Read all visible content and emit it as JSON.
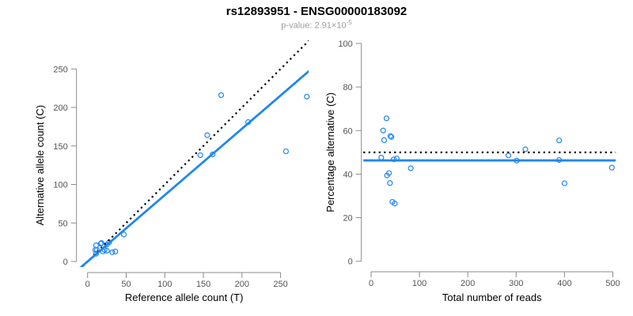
{
  "figure": {
    "title": "rs12893951 - ENSG00000183092",
    "subtitle": {
      "prefix": "p-value: 2.91×10",
      "exponent": "-5"
    }
  },
  "colors": {
    "points": "#1E87F0",
    "fit_line": "#1E87F0",
    "reference_line": "#000000",
    "axis": "#8B8B8B",
    "tick_labels": "#555555",
    "axis_titles": "#000000",
    "title": "#000000",
    "subtitle": "#9C9C9C",
    "background": "#FFFFFF"
  },
  "chart_data": [
    {
      "name": "allele-counts",
      "type": "scatter",
      "title": "",
      "xlabel": "Reference allele count (T)",
      "ylabel": "Alternative allele count (C)",
      "xticks": [
        0,
        50,
        100,
        150,
        200,
        250
      ],
      "yticks": [
        0,
        50,
        100,
        150,
        200,
        250
      ],
      "xlim": [
        -11,
        300
      ],
      "ylim": [
        -7,
        290
      ],
      "grid": false,
      "points": [
        [
          11,
          21
        ],
        [
          10,
          15
        ],
        [
          12,
          15
        ],
        [
          17,
          23
        ],
        [
          18,
          24
        ],
        [
          11,
          10
        ],
        [
          25,
          22
        ],
        [
          28,
          25
        ],
        [
          47,
          35
        ],
        [
          20,
          13
        ],
        [
          22,
          15
        ],
        [
          25,
          14
        ],
        [
          32,
          12
        ],
        [
          36,
          13
        ],
        [
          146,
          138
        ],
        [
          162,
          139
        ],
        [
          155,
          164
        ],
        [
          173,
          216
        ],
        [
          208,
          181
        ],
        [
          257,
          143
        ],
        [
          284,
          214
        ]
      ],
      "lines": [
        {
          "name": "expected-1-to-1",
          "slope": 1,
          "intercept": 0,
          "style": "dotted",
          "color": "#000000"
        },
        {
          "name": "observed-ratio-fit",
          "slope": 0.862,
          "intercept": 0,
          "style": "solid",
          "color": "#1E87F0"
        }
      ]
    },
    {
      "name": "percentage-alternative",
      "type": "scatter",
      "title": "",
      "xlabel": "Total number of reads",
      "ylabel": "Percentage alternative (C)",
      "xticks": [
        0,
        100,
        200,
        300,
        400,
        500
      ],
      "yticks": [
        0,
        20,
        40,
        60,
        80,
        100
      ],
      "xlim": [
        -16,
        506
      ],
      "ylim": [
        -3,
        103
      ],
      "grid": false,
      "points": [
        [
          32,
          65.6
        ],
        [
          25,
          60.0
        ],
        [
          27,
          55.6
        ],
        [
          40,
          57.5
        ],
        [
          42,
          57.1
        ],
        [
          21,
          47.6
        ],
        [
          47,
          46.8
        ],
        [
          53,
          47.2
        ],
        [
          82,
          42.7
        ],
        [
          33,
          39.4
        ],
        [
          37,
          40.5
        ],
        [
          39,
          35.9
        ],
        [
          44,
          27.3
        ],
        [
          49,
          26.5
        ],
        [
          284,
          48.6
        ],
        [
          301,
          46.2
        ],
        [
          319,
          51.4
        ],
        [
          389,
          55.5
        ],
        [
          389,
          46.5
        ],
        [
          400,
          35.8
        ],
        [
          498,
          43.0
        ]
      ],
      "lines": [
        {
          "name": "expected-50-percent",
          "slope": 0,
          "intercept": 50,
          "style": "dotted",
          "color": "#000000"
        },
        {
          "name": "observed-mean-percent",
          "slope": 0,
          "intercept": 46.3,
          "style": "solid",
          "color": "#1E87F0"
        }
      ]
    }
  ]
}
